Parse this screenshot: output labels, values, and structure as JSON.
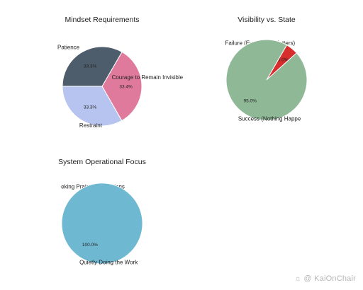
{
  "chart_data": [
    {
      "type": "pie",
      "title": "Mindset Requirements",
      "categories": [
        "Courage to Remain Invisible",
        "Restraint",
        "Patience"
      ],
      "values": [
        33.4,
        33.3,
        33.3
      ],
      "value_labels": [
        "33.4%",
        "33.3%",
        "33.3%"
      ],
      "colors": [
        "#e07a9c",
        "#b8c4f0",
        "#4e5d6c"
      ],
      "start_angle_deg": 60,
      "direction": "clockwise"
    },
    {
      "type": "pie",
      "title": "Visibility vs. State",
      "categories": [
        "Failure (Everything Matters)",
        "Success (Nothing Happe"
      ],
      "values": [
        5.0,
        95.0
      ],
      "value_labels": [
        "5.0%",
        "95.0%"
      ],
      "colors": [
        "#d62d2d",
        "#8fb896"
      ],
      "start_angle_deg": 60,
      "direction": "clockwise"
    },
    {
      "type": "pie",
      "title": "System Operational Focus",
      "categories": [
        "eking Praise/Notifications",
        "Quietly Doing the Work"
      ],
      "values": [
        0.0,
        100.0
      ],
      "value_labels": [
        "0.0%",
        "100.0%"
      ],
      "colors": [
        "#6fb8d2",
        "#6fb8d2"
      ],
      "start_angle_deg": 60,
      "direction": "clockwise"
    }
  ],
  "watermark": {
    "icon": "sun-icon",
    "text": "@ KaiOnChair"
  }
}
